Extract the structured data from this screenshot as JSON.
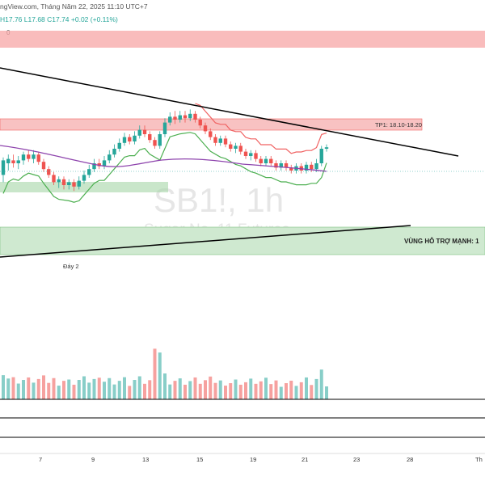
{
  "header": {
    "source_fragment": "ngView.com, Tháng Năm 22, 2025 11:10 UTC+7",
    "ohlc": "H17.76  L17.68  C17.74  +0.02 (+0.11%)",
    "zero_marker": "0"
  },
  "watermark": {
    "symbol": "SB1!, 1h",
    "name": "Sugar No. 11 Futures"
  },
  "annotations": {
    "tp_label": "TP1: 18.10-18.20",
    "support_label": "VÙNG HỖ TRỢ MẠNH: 1",
    "bottom_label": "Đáy 2"
  },
  "x_axis": {
    "ticks": [
      "7",
      "9",
      "13",
      "15",
      "19",
      "21",
      "23",
      "28",
      "Th"
    ]
  },
  "colors": {
    "up": "#26a69a",
    "down": "#ef5350",
    "ma": "#8e44ad",
    "trend": "#000000",
    "supertrend_up": "#4caf50",
    "supertrend_down": "#f06262",
    "resistance_zone": "#f7a6a6",
    "support_zone": "#a5d6a7"
  },
  "chart_data": {
    "type": "candlestick",
    "symbol": "SB1!",
    "interval": "1h",
    "x_ticks": [
      "7",
      "9",
      "13",
      "15",
      "19",
      "21",
      "23",
      "28"
    ],
    "last": {
      "high": 17.76,
      "low": 17.68,
      "close": 17.74,
      "change": 0.02,
      "change_pct": 0.11
    },
    "zones": [
      {
        "name": "TP1",
        "low": 18.1,
        "high": 18.2,
        "label": "TP1: 18.10-18.20"
      },
      {
        "name": "support",
        "label": "VÙNG HỖ TRỢ MẠNH: 1"
      }
    ],
    "candles": [
      [
        0.52,
        0.62,
        0.47,
        0.64,
        "up"
      ],
      [
        0.6,
        0.63,
        0.55,
        0.66,
        "up"
      ],
      [
        0.62,
        0.6,
        0.57,
        0.66,
        "down"
      ],
      [
        0.6,
        0.62,
        0.56,
        0.65,
        "up"
      ],
      [
        0.62,
        0.66,
        0.59,
        0.68,
        "up"
      ],
      [
        0.66,
        0.63,
        0.61,
        0.69,
        "down"
      ],
      [
        0.63,
        0.66,
        0.6,
        0.69,
        "up"
      ],
      [
        0.66,
        0.61,
        0.59,
        0.68,
        "down"
      ],
      [
        0.61,
        0.56,
        0.54,
        0.63,
        "down"
      ],
      [
        0.56,
        0.52,
        0.5,
        0.58,
        "down"
      ],
      [
        0.52,
        0.47,
        0.45,
        0.54,
        "down"
      ],
      [
        0.47,
        0.49,
        0.43,
        0.51,
        "up"
      ],
      [
        0.49,
        0.45,
        0.42,
        0.51,
        "down"
      ],
      [
        0.45,
        0.47,
        0.42,
        0.49,
        "up"
      ],
      [
        0.47,
        0.44,
        0.41,
        0.49,
        "down"
      ],
      [
        0.44,
        0.48,
        0.42,
        0.51,
        "up"
      ],
      [
        0.48,
        0.52,
        0.46,
        0.55,
        "up"
      ],
      [
        0.52,
        0.56,
        0.5,
        0.59,
        "up"
      ],
      [
        0.56,
        0.6,
        0.54,
        0.63,
        "up"
      ],
      [
        0.6,
        0.58,
        0.56,
        0.63,
        "down"
      ],
      [
        0.58,
        0.62,
        0.56,
        0.65,
        "up"
      ],
      [
        0.62,
        0.66,
        0.6,
        0.69,
        "up"
      ],
      [
        0.66,
        0.7,
        0.64,
        0.73,
        "up"
      ],
      [
        0.7,
        0.74,
        0.68,
        0.77,
        "up"
      ],
      [
        0.74,
        0.78,
        0.72,
        0.81,
        "up"
      ],
      [
        0.78,
        0.75,
        0.73,
        0.8,
        "down"
      ],
      [
        0.75,
        0.79,
        0.73,
        0.82,
        "up"
      ],
      [
        0.79,
        0.83,
        0.77,
        0.86,
        "up"
      ],
      [
        0.83,
        0.8,
        0.78,
        0.86,
        "down"
      ],
      [
        0.8,
        0.76,
        0.74,
        0.82,
        "down"
      ],
      [
        0.76,
        0.72,
        0.7,
        0.78,
        "down"
      ],
      [
        0.72,
        0.8,
        0.7,
        0.82,
        "up"
      ],
      [
        0.8,
        0.88,
        0.78,
        0.91,
        "up"
      ],
      [
        0.88,
        0.92,
        0.86,
        0.95,
        "up"
      ],
      [
        0.92,
        0.9,
        0.87,
        0.96,
        "down"
      ],
      [
        0.9,
        0.93,
        0.88,
        0.96,
        "up"
      ],
      [
        0.93,
        0.91,
        0.88,
        0.96,
        "down"
      ],
      [
        0.91,
        0.94,
        0.89,
        0.97,
        "up"
      ],
      [
        0.94,
        0.9,
        0.88,
        0.96,
        "down"
      ],
      [
        0.9,
        0.86,
        0.84,
        0.92,
        "down"
      ],
      [
        0.86,
        0.82,
        0.8,
        0.88,
        "down"
      ],
      [
        0.82,
        0.78,
        0.76,
        0.84,
        "down"
      ],
      [
        0.78,
        0.74,
        0.72,
        0.8,
        "down"
      ],
      [
        0.74,
        0.77,
        0.72,
        0.79,
        "up"
      ],
      [
        0.77,
        0.73,
        0.71,
        0.79,
        "down"
      ],
      [
        0.73,
        0.7,
        0.68,
        0.75,
        "down"
      ],
      [
        0.7,
        0.72,
        0.67,
        0.74,
        "up"
      ],
      [
        0.72,
        0.68,
        0.66,
        0.74,
        "down"
      ],
      [
        0.68,
        0.65,
        0.63,
        0.7,
        "down"
      ],
      [
        0.65,
        0.67,
        0.62,
        0.69,
        "up"
      ],
      [
        0.67,
        0.63,
        0.61,
        0.69,
        "down"
      ],
      [
        0.63,
        0.6,
        0.58,
        0.65,
        "down"
      ],
      [
        0.6,
        0.63,
        0.58,
        0.65,
        "up"
      ],
      [
        0.63,
        0.6,
        0.58,
        0.65,
        "down"
      ],
      [
        0.6,
        0.57,
        0.55,
        0.62,
        "down"
      ],
      [
        0.57,
        0.6,
        0.55,
        0.62,
        "up"
      ],
      [
        0.6,
        0.57,
        0.55,
        0.62,
        "down"
      ],
      [
        0.57,
        0.55,
        0.53,
        0.59,
        "down"
      ],
      [
        0.55,
        0.58,
        0.53,
        0.6,
        "up"
      ],
      [
        0.58,
        0.55,
        0.53,
        0.6,
        "down"
      ],
      [
        0.55,
        0.59,
        0.53,
        0.61,
        "up"
      ],
      [
        0.59,
        0.56,
        0.54,
        0.61,
        "down"
      ],
      [
        0.56,
        0.6,
        0.54,
        0.63,
        "up"
      ],
      [
        0.6,
        0.7,
        0.58,
        0.72,
        "up"
      ],
      [
        0.7,
        0.71,
        0.68,
        0.73,
        "up"
      ]
    ]
  }
}
